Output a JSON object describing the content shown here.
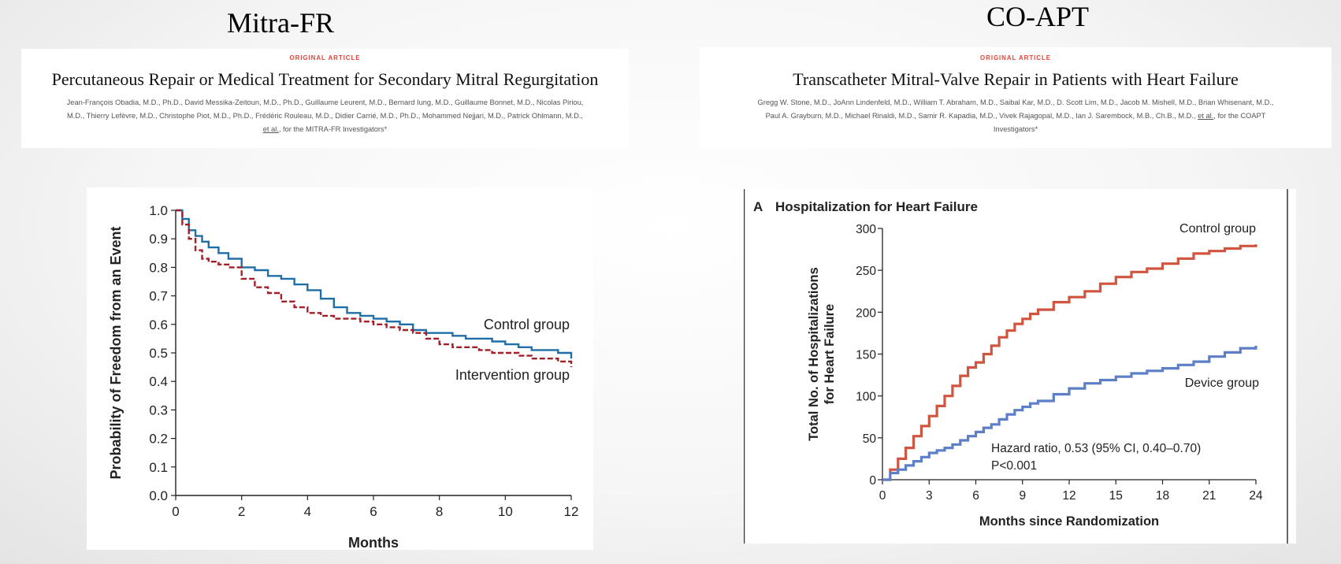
{
  "left": {
    "title": "Mitra-FR",
    "article": {
      "kicker": "ORIGINAL ARTICLE",
      "title": "Percutaneous Repair or Medical Treatment for Secondary Mitral Regurgitation",
      "authors_line1": "Jean-François Obadia, M.D., Ph.D., David Messika-Zeitoun, M.D., Ph.D., Guillaume Leurent, M.D., Bernard Iung, M.D., Guillaume Bonnet, M.D., Nicolas Piriou,",
      "authors_line2": "M.D., Thierry Lefèvre, M.D., Christophe Piot, M.D., Ph.D., Frédéric Rouleau, M.D., Didier Carrié, M.D., Ph.D., Mohammed Nejjari, M.D., Patrick Ohlmann, M.D.,",
      "authors_link": "et al.",
      "authors_tail": ", for the MITRA-FR Investigators*"
    }
  },
  "right": {
    "title": "CO-APT",
    "article": {
      "kicker": "ORIGINAL ARTICLE",
      "title": "Transcatheter Mitral-Valve Repair in Patients with Heart Failure",
      "authors_line1": "Gregg W. Stone, M.D., JoAnn Lindenfeld, M.D., William T. Abraham, M.D., Saibal Kar, M.D., D. Scott Lim, M.D., Jacob M. Mishell, M.D., Brian Whisenant, M.D.,",
      "authors_line2": "Paul A. Grayburn, M.D., Michael Rinaldi, M.D., Samir R. Kapadia, M.D., Vivek Rajagopal, M.D., Ian J. Sarembock, M.B., Ch.B., M.D.,",
      "authors_link": "et al.",
      "authors_tail": ", for the COAPT",
      "authors_line3": "Investigators*"
    }
  },
  "chart_data": [
    {
      "type": "line",
      "title": "",
      "xlabel": "Months",
      "ylabel": "Probability of Freedom from an Event",
      "xlim": [
        0,
        12
      ],
      "ylim": [
        0,
        1
      ],
      "xticks": [
        0,
        2,
        4,
        6,
        8,
        10,
        12
      ],
      "yticks": [
        0.0,
        0.1,
        0.2,
        0.3,
        0.4,
        0.5,
        0.6,
        0.7,
        0.8,
        0.9,
        1.0
      ],
      "ytick_labels": [
        "0.0",
        "0.1",
        "0.2",
        "0.3",
        "0.4",
        "0.5",
        "0.6",
        "0.7",
        "0.8",
        "0.9",
        "1.0"
      ],
      "grid": false,
      "step": true,
      "series": [
        {
          "name": "Control group",
          "color": "#1f6ea8",
          "dashed": false,
          "x": [
            0,
            0.2,
            0.4,
            0.6,
            0.8,
            1.0,
            1.3,
            1.6,
            2.0,
            2.4,
            2.8,
            3.2,
            3.6,
            4.0,
            4.4,
            4.8,
            5.2,
            5.6,
            6.0,
            6.4,
            6.8,
            7.2,
            7.6,
            8.0,
            8.4,
            8.8,
            9.2,
            9.6,
            10.0,
            10.4,
            10.8,
            11.2,
            11.6,
            12.0
          ],
          "y": [
            1.0,
            0.97,
            0.93,
            0.91,
            0.89,
            0.87,
            0.85,
            0.83,
            0.8,
            0.79,
            0.77,
            0.76,
            0.74,
            0.72,
            0.69,
            0.66,
            0.64,
            0.63,
            0.62,
            0.61,
            0.6,
            0.58,
            0.57,
            0.57,
            0.56,
            0.55,
            0.55,
            0.54,
            0.53,
            0.52,
            0.51,
            0.51,
            0.5,
            0.48
          ]
        },
        {
          "name": "Intervention group",
          "color": "#a31f28",
          "dashed": true,
          "x": [
            0,
            0.2,
            0.4,
            0.6,
            0.8,
            1.0,
            1.3,
            1.6,
            2.0,
            2.4,
            2.8,
            3.2,
            3.6,
            4.0,
            4.4,
            4.8,
            5.2,
            5.6,
            6.0,
            6.4,
            6.8,
            7.2,
            7.6,
            8.0,
            8.4,
            8.8,
            9.2,
            9.6,
            10.0,
            10.4,
            10.8,
            11.2,
            11.6,
            12.0
          ],
          "y": [
            1.0,
            0.95,
            0.9,
            0.86,
            0.83,
            0.82,
            0.81,
            0.8,
            0.76,
            0.73,
            0.71,
            0.68,
            0.66,
            0.64,
            0.63,
            0.62,
            0.62,
            0.61,
            0.6,
            0.59,
            0.58,
            0.57,
            0.55,
            0.53,
            0.52,
            0.52,
            0.51,
            0.5,
            0.5,
            0.49,
            0.48,
            0.48,
            0.47,
            0.45
          ]
        }
      ]
    },
    {
      "type": "line",
      "title": "Hospitalization for Heart Failure",
      "panel_label": "A",
      "xlabel": "Months since Randomization",
      "ylabel": "Total No. of Hospitalizations for Heart Failure",
      "ylabel_lines": [
        "Total No. of Hospitalizations",
        "for Heart Failure"
      ],
      "xlim": [
        0,
        24
      ],
      "ylim": [
        0,
        300
      ],
      "xticks": [
        0,
        3,
        6,
        9,
        12,
        15,
        18,
        21,
        24
      ],
      "yticks": [
        0,
        50,
        100,
        150,
        200,
        250,
        300
      ],
      "grid": false,
      "step": true,
      "annotation_lines": [
        "Hazard ratio, 0.53 (95% CI, 0.40–0.70)",
        "P<0.001"
      ],
      "series": [
        {
          "name": "Control group",
          "color": "#d0543e",
          "x": [
            0,
            0.5,
            1,
            1.5,
            2,
            2.5,
            3,
            3.5,
            4,
            4.5,
            5,
            5.5,
            6,
            6.5,
            7,
            7.5,
            8,
            8.5,
            9,
            9.5,
            10,
            11,
            12,
            13,
            14,
            15,
            16,
            17,
            18,
            19,
            20,
            21,
            22,
            23,
            24
          ],
          "y": [
            0,
            12,
            25,
            38,
            52,
            64,
            76,
            88,
            100,
            112,
            124,
            134,
            140,
            150,
            160,
            170,
            178,
            186,
            192,
            198,
            203,
            212,
            218,
            225,
            234,
            242,
            248,
            252,
            258,
            264,
            270,
            273,
            276,
            279,
            281
          ]
        },
        {
          "name": "Device group",
          "color": "#5c7fc7",
          "x": [
            0,
            0.5,
            1,
            1.5,
            2,
            2.5,
            3,
            3.5,
            4,
            4.5,
            5,
            5.5,
            6,
            6.5,
            7,
            7.5,
            8,
            8.5,
            9,
            9.5,
            10,
            11,
            12,
            13,
            14,
            15,
            16,
            17,
            18,
            19,
            20,
            21,
            22,
            23,
            24
          ],
          "y": [
            0,
            8,
            12,
            17,
            22,
            27,
            32,
            35,
            38,
            42,
            47,
            52,
            57,
            62,
            66,
            72,
            78,
            83,
            87,
            91,
            94,
            102,
            109,
            115,
            119,
            123,
            127,
            130,
            133,
            137,
            141,
            147,
            152,
            157,
            160
          ]
        }
      ]
    }
  ]
}
